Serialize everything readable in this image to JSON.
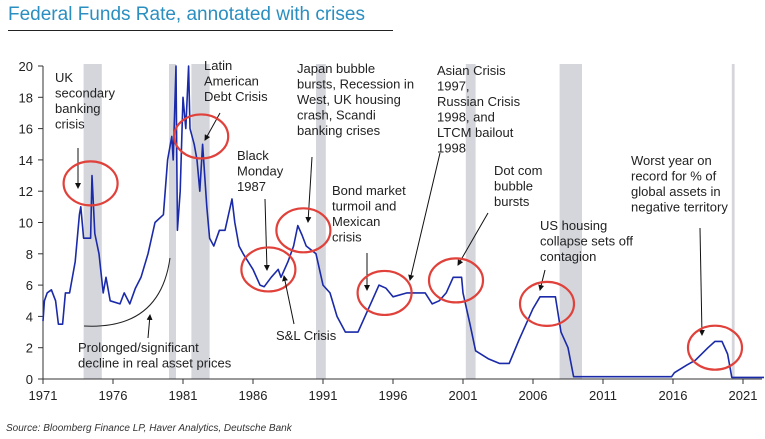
{
  "title": "Federal Funds Rate, annotated with crises",
  "source": "Source: Bloomberg Finance LP, Haver Analytics, Deutsche Bank",
  "chart_data": {
    "type": "line",
    "title": "Federal Funds Rate, annotated with crises",
    "xlabel": "",
    "ylabel": "",
    "xlim": [
      1971,
      2022.5
    ],
    "ylim": [
      0,
      20
    ],
    "x_ticks": [
      "1971",
      "1976",
      "1981",
      "1986",
      "1991",
      "1996",
      "2001",
      "2006",
      "2011",
      "2016",
      "2021"
    ],
    "y_ticks": [
      "0",
      "2",
      "4",
      "6",
      "8",
      "10",
      "12",
      "14",
      "16",
      "18",
      "20"
    ],
    "grid": false,
    "line_color": "#1a2aa8",
    "recession_color": "#d4d6dc",
    "highlight_color": "#e0413a",
    "recessions": [
      [
        1973.9,
        1975.2
      ],
      [
        1980.0,
        1980.5
      ],
      [
        1981.6,
        1982.9
      ],
      [
        1990.5,
        1991.2
      ],
      [
        2001.2,
        2001.9
      ],
      [
        2007.9,
        2009.5
      ],
      [
        2020.2,
        2020.4
      ]
    ],
    "series": [
      {
        "points": [
          [
            1971,
            3.7
          ],
          [
            1971.1,
            5.0
          ],
          [
            1971.3,
            5.5
          ],
          [
            1971.6,
            5.7
          ],
          [
            1971.9,
            5
          ],
          [
            1972.1,
            3.5
          ],
          [
            1972.4,
            3.5
          ],
          [
            1972.6,
            5.5
          ],
          [
            1972.9,
            5.5
          ],
          [
            1973.3,
            7.5
          ],
          [
            1973.6,
            10.5
          ],
          [
            1973.7,
            11
          ],
          [
            1973.9,
            9
          ],
          [
            1974.4,
            9
          ],
          [
            1974.5,
            13
          ],
          [
            1974.7,
            9.3
          ],
          [
            1975,
            8
          ],
          [
            1975.3,
            5.5
          ],
          [
            1975.5,
            6.5
          ],
          [
            1975.8,
            5
          ],
          [
            1976.5,
            4.8
          ],
          [
            1976.8,
            5.5
          ],
          [
            1977.2,
            4.8
          ],
          [
            1977.6,
            5.8
          ],
          [
            1978,
            6.5
          ],
          [
            1978.5,
            8
          ],
          [
            1979,
            10
          ],
          [
            1979.6,
            10.5
          ],
          [
            1979.9,
            14
          ],
          [
            1980.2,
            15.5
          ],
          [
            1980.3,
            14
          ],
          [
            1980.5,
            20
          ],
          [
            1980.6,
            9.5
          ],
          [
            1980.8,
            12
          ],
          [
            1981,
            18
          ],
          [
            1981.2,
            16
          ],
          [
            1981.4,
            20
          ],
          [
            1981.5,
            16
          ],
          [
            1981.8,
            15
          ],
          [
            1982,
            14
          ],
          [
            1982.2,
            12
          ],
          [
            1982.4,
            15
          ],
          [
            1982.7,
            11
          ],
          [
            1982.9,
            9
          ],
          [
            1983.2,
            8.5
          ],
          [
            1983.6,
            9.5
          ],
          [
            1984,
            9.5
          ],
          [
            1984.5,
            11.5
          ],
          [
            1984.7,
            10
          ],
          [
            1985,
            8.5
          ],
          [
            1985.3,
            8
          ],
          [
            1986,
            7
          ],
          [
            1986.5,
            6
          ],
          [
            1986.8,
            5.9
          ],
          [
            1987.3,
            6.5
          ],
          [
            1987.8,
            7
          ],
          [
            1988,
            6.5
          ],
          [
            1988.5,
            7.5
          ],
          [
            1988.9,
            8.5
          ],
          [
            1989.2,
            9.8
          ],
          [
            1989.5,
            9.2
          ],
          [
            1989.8,
            8.5
          ],
          [
            1990.5,
            8
          ],
          [
            1991,
            6
          ],
          [
            1991.5,
            5.5
          ],
          [
            1992,
            4
          ],
          [
            1992.6,
            3
          ],
          [
            1993.5,
            3
          ],
          [
            1994,
            4
          ],
          [
            1994.5,
            5
          ],
          [
            1995,
            6
          ],
          [
            1995.5,
            5.8
          ],
          [
            1996,
            5.25
          ],
          [
            1997,
            5.5
          ],
          [
            1998.3,
            5.5
          ],
          [
            1998.8,
            4.8
          ],
          [
            1999.3,
            5
          ],
          [
            1999.8,
            5.5
          ],
          [
            2000.3,
            6.5
          ],
          [
            2000.9,
            6.5
          ],
          [
            2001,
            5.5
          ],
          [
            2001.5,
            3.5
          ],
          [
            2001.9,
            1.8
          ],
          [
            2002.8,
            1.3
          ],
          [
            2003.6,
            1
          ],
          [
            2004.3,
            1
          ],
          [
            2005,
            2.5
          ],
          [
            2006,
            4.5
          ],
          [
            2006.5,
            5.25
          ],
          [
            2007.6,
            5.25
          ],
          [
            2008,
            3
          ],
          [
            2008.5,
            2
          ],
          [
            2008.9,
            0.15
          ],
          [
            2015.9,
            0.15
          ],
          [
            2016.1,
            0.4
          ],
          [
            2017,
            0.9
          ],
          [
            2017.6,
            1.2
          ],
          [
            2018.5,
            2.0
          ],
          [
            2019,
            2.4
          ],
          [
            2019.5,
            2.4
          ],
          [
            2019.9,
            1.6
          ],
          [
            2020.2,
            0.1
          ],
          [
            2022.5,
            0.1
          ]
        ]
      }
    ],
    "annotations": [
      {
        "lines": [
          "UK",
          "secondary",
          "banking",
          "crisis"
        ],
        "circle": [
          1974.4,
          12.5
        ]
      },
      {
        "lines": [
          "Latin",
          "American",
          "Debt Crisis"
        ],
        "circle": [
          1982.3,
          15.5
        ]
      },
      {
        "lines": [
          "Black",
          "Monday",
          "1987"
        ],
        "circle": [
          1987.1,
          7.0
        ]
      },
      {
        "lines": [
          "Japan bubble",
          "bursts, Recession in",
          "West, UK housing",
          "crash, Scandi",
          "banking crises"
        ],
        "circle": [
          1989.6,
          9.5
        ]
      },
      {
        "lines": [
          "Bond market",
          "turmoil and",
          "Mexican",
          "crisis"
        ],
        "circle": [
          1995.4,
          5.5
        ]
      },
      {
        "lines": [
          "Asian Crisis",
          "1997,",
          "Russian Crisis",
          "1998, and",
          "LTCM bailout",
          "1998"
        ],
        "circle": null
      },
      {
        "lines": [
          "Dot com",
          "bubble",
          "bursts"
        ],
        "circle": [
          2000.5,
          6.3
        ]
      },
      {
        "lines": [
          "US housing",
          "collapse sets off",
          "contagion"
        ],
        "circle": [
          2007.0,
          4.8
        ]
      },
      {
        "lines": [
          "Worst year on",
          "record for % of",
          "global assets in",
          "negative territory"
        ],
        "circle": [
          2019.0,
          2.0
        ]
      },
      {
        "lines": [
          "S&L Crisis"
        ],
        "circle": null
      },
      {
        "lines": [
          "Prolonged/significant",
          "decline in real asset prices"
        ],
        "circle": null
      }
    ]
  }
}
